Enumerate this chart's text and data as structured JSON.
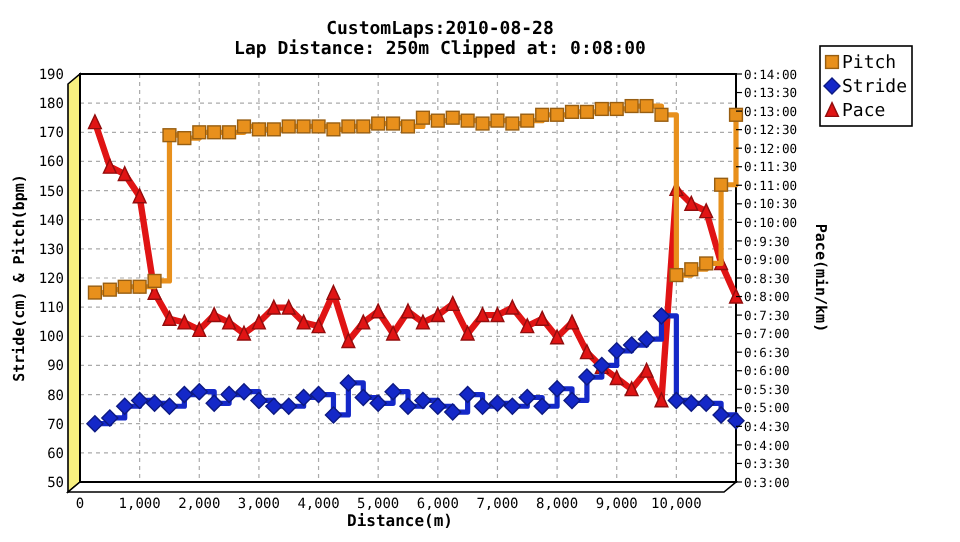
{
  "chart_data": {
    "type": "line",
    "title": "CustomLaps:2010-08-28",
    "subtitle": "Lap Distance: 250m Clipped at: 0:08:00",
    "xlabel": "Distance(m)",
    "ylabel": "Stride(cm) & Pitch(bpm)",
    "y2label": "Pace(min/km)",
    "x": [
      250,
      500,
      750,
      1000,
      1250,
      1500,
      1750,
      2000,
      2250,
      2500,
      2750,
      3000,
      3250,
      3500,
      3750,
      4000,
      4250,
      4500,
      4750,
      5000,
      5250,
      5500,
      5750,
      6000,
      6250,
      6500,
      6750,
      7000,
      7250,
      7500,
      7750,
      8000,
      8250,
      8500,
      8750,
      9000,
      9250,
      9500,
      9750,
      10000,
      10250,
      10500,
      10750,
      11000
    ],
    "series": [
      {
        "name": "Pitch",
        "type": "step",
        "color": "#e8901c",
        "marker": "square",
        "values": [
          115,
          116,
          117,
          117,
          119,
          169,
          168,
          170,
          170,
          170,
          172,
          171,
          171,
          172,
          172,
          172,
          171,
          172,
          172,
          173,
          173,
          172,
          175,
          174,
          175,
          174,
          173,
          174,
          173,
          174,
          176,
          176,
          177,
          177,
          178,
          178,
          179,
          179,
          176,
          121,
          123,
          125,
          152,
          176
        ]
      },
      {
        "name": "Stride",
        "type": "step",
        "color": "#1428c8",
        "marker": "diamond",
        "values": [
          70,
          72,
          76,
          78,
          77,
          76,
          80,
          81,
          77,
          80,
          81,
          78,
          76,
          76,
          79,
          80,
          73,
          84,
          79,
          77,
          81,
          76,
          78,
          76,
          74,
          80,
          76,
          77,
          76,
          79,
          76,
          82,
          78,
          86,
          90,
          95,
          97,
          99,
          107,
          78,
          77,
          77,
          73,
          71
        ]
      },
      {
        "name": "Pace",
        "axis": "y2",
        "color": "#e01414",
        "marker": "triangle",
        "values": [
          12.7,
          11.5,
          11.3,
          10.7,
          8.1,
          7.4,
          7.3,
          7.1,
          7.5,
          7.3,
          7.0,
          7.3,
          7.7,
          7.7,
          7.3,
          7.2,
          8.1,
          6.8,
          7.3,
          7.6,
          7.0,
          7.6,
          7.3,
          7.5,
          7.8,
          7.0,
          7.5,
          7.5,
          7.7,
          7.2,
          7.4,
          6.9,
          7.3,
          6.5,
          6.1,
          5.8,
          5.5,
          6.0,
          5.2,
          10.9,
          10.5,
          10.3,
          8.9,
          8.0
        ]
      }
    ],
    "xlim": [
      0,
      11000
    ],
    "xticks": [
      0,
      {
        "value": 1000,
        "label": "1,000"
      },
      {
        "value": 2000,
        "label": "2,000"
      },
      {
        "value": 3000,
        "label": "3,000"
      },
      {
        "value": 4000,
        "label": "4,000"
      },
      {
        "value": 5000,
        "label": "5,000"
      },
      {
        "value": 6000,
        "label": "6,000"
      },
      {
        "value": 7000,
        "label": "7,000"
      },
      {
        "value": 8000,
        "label": "8,000"
      },
      {
        "value": 9000,
        "label": "9,000"
      },
      {
        "value": 10000,
        "label": "10,000"
      }
    ],
    "ylim": [
      50,
      190
    ],
    "yticks": [
      50,
      60,
      70,
      80,
      90,
      100,
      110,
      120,
      130,
      140,
      150,
      160,
      170,
      180,
      190
    ],
    "y2lim": [
      3,
      14
    ],
    "y2ticks": [
      {
        "value": 3,
        "label": "0:3:00"
      },
      {
        "value": 3.5,
        "label": "0:3:30"
      },
      {
        "value": 4,
        "label": "0:4:00"
      },
      {
        "value": 4.5,
        "label": "0:4:30"
      },
      {
        "value": 5,
        "label": "0:5:00"
      },
      {
        "value": 5.5,
        "label": "0:5:30"
      },
      {
        "value": 6,
        "label": "0:6:00"
      },
      {
        "value": 6.5,
        "label": "0:6:30"
      },
      {
        "value": 7,
        "label": "0:7:00"
      },
      {
        "value": 7.5,
        "label": "0:7:30"
      },
      {
        "value": 8,
        "label": "0:8:00"
      },
      {
        "value": 8.5,
        "label": "0:8:30"
      },
      {
        "value": 9,
        "label": "0:9:00"
      },
      {
        "value": 9.5,
        "label": "0:9:30"
      },
      {
        "value": 10,
        "label": "0:10:00"
      },
      {
        "value": 10.5,
        "label": "0:10:30"
      },
      {
        "value": 11,
        "label": "0:11:00"
      },
      {
        "value": 11.5,
        "label": "0:11:30"
      },
      {
        "value": 12,
        "label": "0:12:00"
      },
      {
        "value": 12.5,
        "label": "0:12:30"
      },
      {
        "value": 13,
        "label": "0:13:00"
      },
      {
        "value": 13.5,
        "label": "0:13:30"
      },
      {
        "value": 14,
        "label": "0:14:00"
      }
    ],
    "grid": true,
    "legend": "top right"
  }
}
